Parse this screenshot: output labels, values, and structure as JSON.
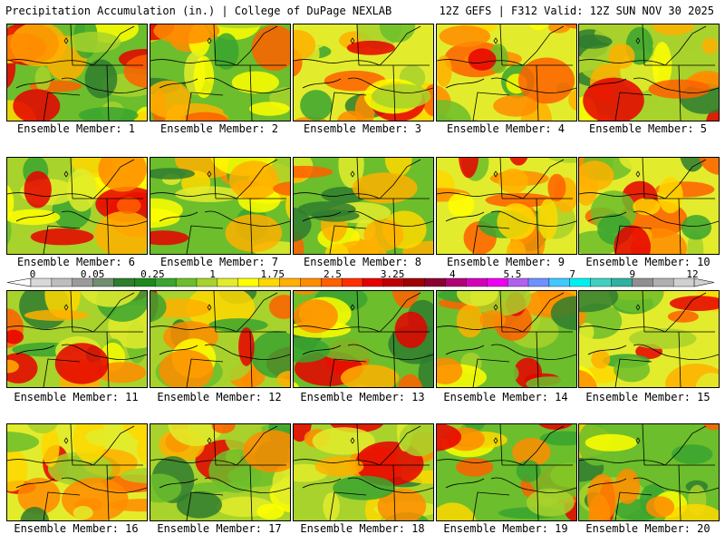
{
  "header": {
    "title_left": "Precipitation Accumulation (in.) | College of DuPage NEXLAB",
    "title_right": "12Z GEFS | F312 Valid: 12Z SUN NOV 30 2025"
  },
  "colorbar": {
    "tick_labels": [
      "0",
      "0.05",
      "0.25",
      "1",
      "1.75",
      "2.5",
      "3.25",
      "4",
      "5.5",
      "7",
      "9",
      "12"
    ],
    "colors": [
      "#d8d8d8",
      "#bdbdbd",
      "#9b9b9b",
      "#6f8f6f",
      "#2f7d2f",
      "#1c8a1c",
      "#3aa530",
      "#6cbe2c",
      "#a8d22c",
      "#e2ec2c",
      "#ffff00",
      "#ffd800",
      "#ffb000",
      "#ff8c00",
      "#ff6000",
      "#ff3000",
      "#e60000",
      "#c00000",
      "#a00000",
      "#8a0030",
      "#b00078",
      "#d400b8",
      "#f000f0",
      "#b060f0",
      "#7090ff",
      "#40c8ff",
      "#00f0f0",
      "#40d0c0",
      "#30b0a0",
      "#909090",
      "#b0b0b0",
      "#d0d0d0"
    ]
  },
  "panels": [
    {
      "label": "Ensemble Member: 1"
    },
    {
      "label": "Ensemble Member: 2"
    },
    {
      "label": "Ensemble Member: 3"
    },
    {
      "label": "Ensemble Member: 4"
    },
    {
      "label": "Ensemble Member: 5"
    },
    {
      "label": "Ensemble Member: 6"
    },
    {
      "label": "Ensemble Member: 7"
    },
    {
      "label": "Ensemble Member: 8"
    },
    {
      "label": "Ensemble Member: 9"
    },
    {
      "label": "Ensemble Member: 10"
    },
    {
      "label": "Ensemble Member: 11"
    },
    {
      "label": "Ensemble Member: 12"
    },
    {
      "label": "Ensemble Member: 13"
    },
    {
      "label": "Ensemble Member: 14"
    },
    {
      "label": "Ensemble Member: 15"
    },
    {
      "label": "Ensemble Member: 16"
    },
    {
      "label": "Ensemble Member: 17"
    },
    {
      "label": "Ensemble Member: 18"
    },
    {
      "label": "Ensemble Member: 19"
    },
    {
      "label": "Ensemble Member: 20"
    }
  ]
}
